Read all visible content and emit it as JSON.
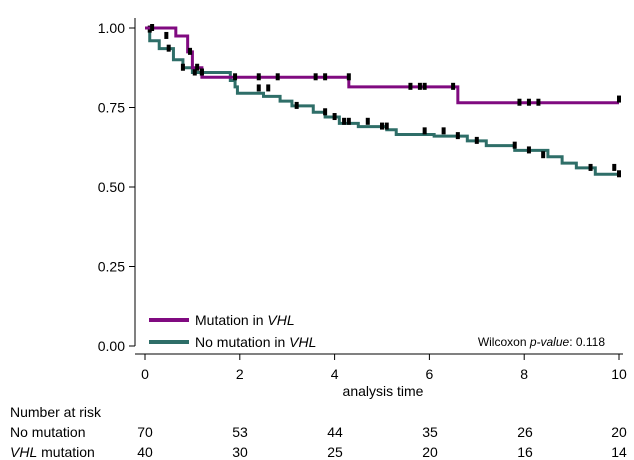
{
  "chart_data": {
    "type": "line",
    "subtype": "kaplan-meier",
    "title": "",
    "xlabel": "analysis time",
    "ylabel": "",
    "xlim": [
      0,
      10
    ],
    "ylim": [
      0,
      1
    ],
    "x_ticks": [
      "0",
      "2",
      "4",
      "6",
      "8",
      "10"
    ],
    "y_ticks": [
      "0.00",
      "0.25",
      "0.50",
      "0.75",
      "1.00"
    ],
    "grid": false,
    "legend_position": "bottom-left",
    "annotation": {
      "prefix": "Wilcoxon ",
      "italic": "p-value",
      "suffix": ": 0.118"
    },
    "series": [
      {
        "key": "mutation",
        "label_plain": "Mutation in ",
        "label_italic": "VHL",
        "color": "#800a80",
        "steps": [
          [
            0,
            1.0
          ],
          [
            0.65,
            0.975
          ],
          [
            0.9,
            0.925
          ],
          [
            1.0,
            0.875
          ],
          [
            1.2,
            0.845
          ],
          [
            4.3,
            0.815
          ],
          [
            6.6,
            0.765
          ],
          [
            10,
            0.765
          ]
        ],
        "censored": [
          [
            0.15,
            1.0
          ],
          [
            0.45,
            0.975
          ],
          [
            0.95,
            0.925
          ],
          [
            1.1,
            0.875
          ],
          [
            1.2,
            0.86
          ],
          [
            1.9,
            0.845
          ],
          [
            2.4,
            0.845
          ],
          [
            2.8,
            0.845
          ],
          [
            3.6,
            0.845
          ],
          [
            3.8,
            0.845
          ],
          [
            4.3,
            0.845
          ],
          [
            5.6,
            0.815
          ],
          [
            5.8,
            0.815
          ],
          [
            5.9,
            0.815
          ],
          [
            6.5,
            0.815
          ],
          [
            7.9,
            0.765
          ],
          [
            8.1,
            0.765
          ],
          [
            8.3,
            0.765
          ],
          [
            10,
            0.775
          ]
        ]
      },
      {
        "key": "nomutation",
        "label_plain": "No mutation in ",
        "label_italic": "VHL",
        "color": "#2e6e68",
        "steps": [
          [
            0,
            1.0
          ],
          [
            0.1,
            0.96
          ],
          [
            0.3,
            0.935
          ],
          [
            0.6,
            0.9
          ],
          [
            0.8,
            0.875
          ],
          [
            1.0,
            0.86
          ],
          [
            1.8,
            0.835
          ],
          [
            1.9,
            0.815
          ],
          [
            1.95,
            0.795
          ],
          [
            2.3,
            0.795
          ],
          [
            2.5,
            0.785
          ],
          [
            2.85,
            0.77
          ],
          [
            3.1,
            0.755
          ],
          [
            3.55,
            0.735
          ],
          [
            3.8,
            0.72
          ],
          [
            4.1,
            0.7
          ],
          [
            4.5,
            0.69
          ],
          [
            5.1,
            0.68
          ],
          [
            5.3,
            0.665
          ],
          [
            6.1,
            0.66
          ],
          [
            6.8,
            0.645
          ],
          [
            7.2,
            0.63
          ],
          [
            7.8,
            0.615
          ],
          [
            8.5,
            0.595
          ],
          [
            8.8,
            0.575
          ],
          [
            9.1,
            0.56
          ],
          [
            9.5,
            0.54
          ],
          [
            10,
            0.535
          ]
        ],
        "censored": [
          [
            0.1,
            0.995
          ],
          [
            0.5,
            0.935
          ],
          [
            0.8,
            0.875
          ],
          [
            1.05,
            0.86
          ],
          [
            1.2,
            0.86
          ],
          [
            2.4,
            0.81
          ],
          [
            2.6,
            0.81
          ],
          [
            3.2,
            0.755
          ],
          [
            3.8,
            0.735
          ],
          [
            4.0,
            0.72
          ],
          [
            4.2,
            0.705
          ],
          [
            4.3,
            0.705
          ],
          [
            4.7,
            0.705
          ],
          [
            5.0,
            0.69
          ],
          [
            5.1,
            0.69
          ],
          [
            5.9,
            0.675
          ],
          [
            6.3,
            0.675
          ],
          [
            6.6,
            0.66
          ],
          [
            7.0,
            0.645
          ],
          [
            7.8,
            0.63
          ],
          [
            8.1,
            0.615
          ],
          [
            8.4,
            0.6
          ],
          [
            9.4,
            0.56
          ],
          [
            9.9,
            0.56
          ],
          [
            10,
            0.54
          ]
        ]
      }
    ]
  },
  "risk_table": {
    "title": "Number at risk",
    "x": [
      0,
      2,
      4,
      6,
      8,
      10
    ],
    "rows": [
      {
        "label_plain": "No mutation",
        "label_italic": "",
        "label_suffix": "",
        "values": [
          "70",
          "53",
          "44",
          "35",
          "26",
          "20"
        ]
      },
      {
        "label_plain": "",
        "label_italic": "VHL",
        "label_suffix": " mutation",
        "values": [
          "40",
          "30",
          "25",
          "20",
          "16",
          "14"
        ]
      }
    ]
  }
}
